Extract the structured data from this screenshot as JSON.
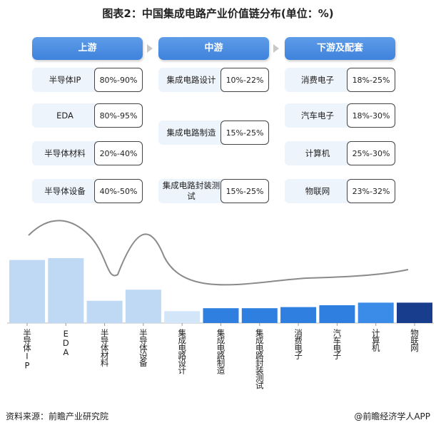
{
  "title": "图表2：中国集成电路产业价值链分布(单位：%)",
  "stages": [
    {
      "name": "上游",
      "items": [
        {
          "label": "半导体IP",
          "value": "80%-90%"
        },
        {
          "label": "EDA",
          "value": "80%-95%"
        },
        {
          "label": "半导体材料",
          "value": "20%-40%"
        },
        {
          "label": "半导体设备",
          "value": "40%-50%"
        }
      ]
    },
    {
      "name": "中游",
      "items": [
        {
          "label": "集成电路设计",
          "value": "10%-22%"
        },
        {
          "label": "集成电路制造",
          "value": "15%-25%"
        },
        {
          "label": "集成电路封装测试",
          "value": "15%-25%"
        }
      ]
    },
    {
      "name": "下游及配套",
      "items": [
        {
          "label": "消费电子",
          "value": "18%-25%"
        },
        {
          "label": "汽车电子",
          "value": "18%-30%"
        },
        {
          "label": "计算机",
          "value": "25%-30%"
        },
        {
          "label": "物联网",
          "value": "23%-32%"
        }
      ]
    }
  ],
  "chart_data": {
    "type": "bar",
    "categories": [
      "半导体IP",
      "EDA",
      "半导体材料",
      "半导体设备",
      "集成电路设计",
      "集成电路制造",
      "集成电路封装测试",
      "消费电子",
      "汽车电子",
      "计算机",
      "物联网"
    ],
    "values": [
      85,
      87.5,
      30,
      45,
      16,
      20,
      20,
      21.5,
      24,
      27.5,
      27.5
    ],
    "colors": [
      "#bfd8f4",
      "#bfd8f4",
      "#bfd8f4",
      "#bfd8f4",
      "#d3e5f8",
      "#2e7fdf",
      "#2e7fdf",
      "#2e7fdf",
      "#2e7fdf",
      "#3b8be8",
      "#173d8c"
    ]
  },
  "footer": {
    "source": "资料来源：前瞻产业研究院",
    "credit": "@前瞻经济学人APP"
  }
}
